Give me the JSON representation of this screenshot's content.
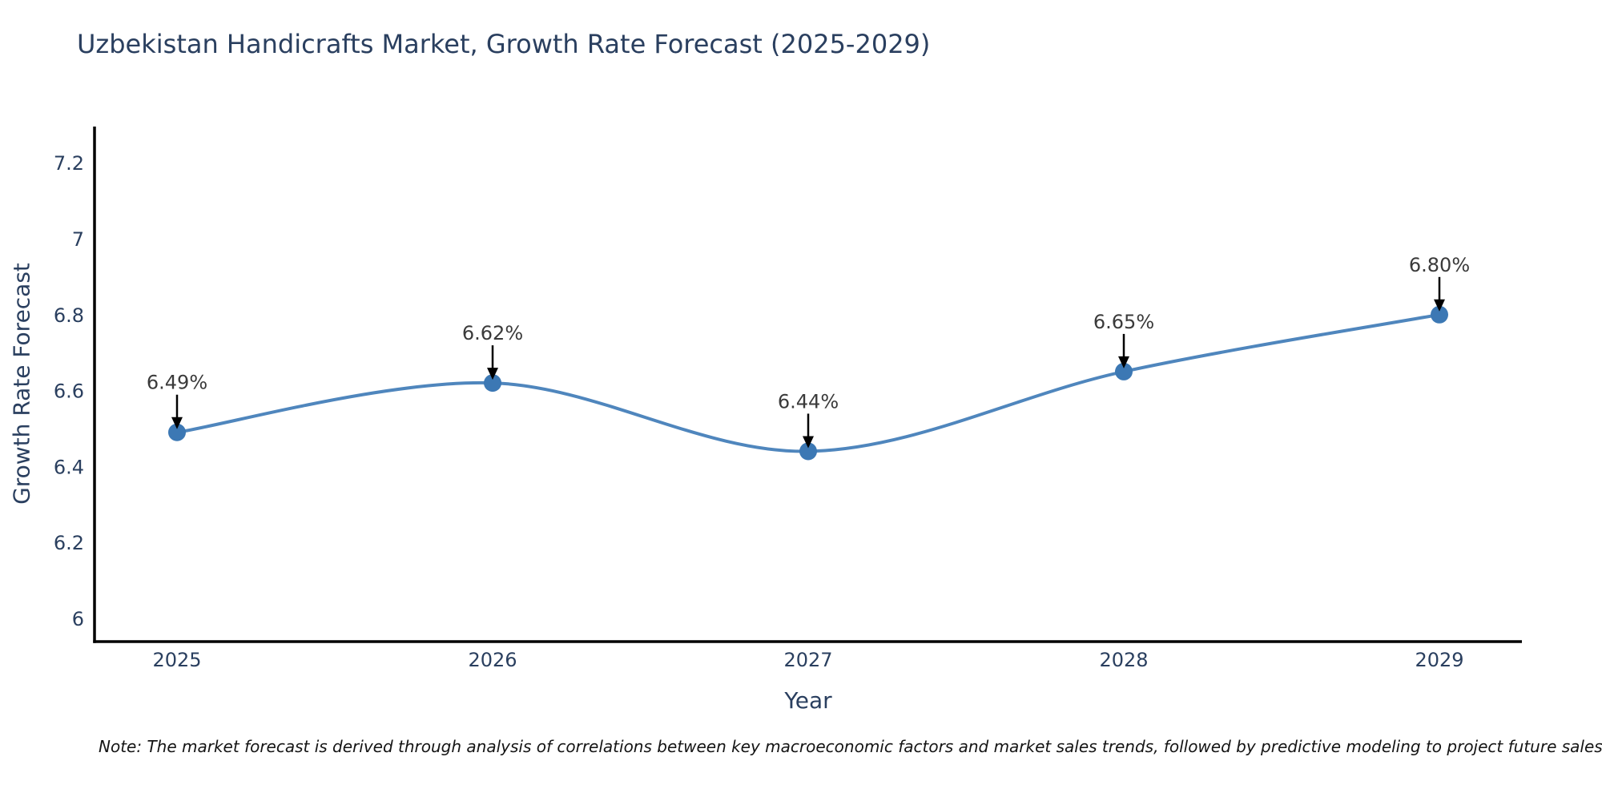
{
  "title": "Uzbekistan Handicrafts Market, Growth Rate Forecast (2025-2029)",
  "note": "Note: The market forecast is derived through analysis of correlations between key macroeconomic factors and market sales trends, followed by predictive modeling to project future sales",
  "chart_data": {
    "type": "line",
    "title": "Uzbekistan Handicrafts Market, Growth Rate Forecast (2025-2029)",
    "xlabel": "Year",
    "ylabel": "Growth Rate Forecast",
    "x": [
      2025,
      2026,
      2027,
      2028,
      2029
    ],
    "x_tick_labels": [
      "2025",
      "2026",
      "2027",
      "2028",
      "2029"
    ],
    "series": [
      {
        "name": "Growth Rate Forecast",
        "values": [
          6.49,
          6.62,
          6.44,
          6.65,
          6.8
        ]
      }
    ],
    "point_labels": [
      "6.49%",
      "6.62%",
      "6.44%",
      "6.65%",
      "6.80%"
    ],
    "y_ticks": [
      6,
      6.2,
      6.4,
      6.6,
      6.8,
      7,
      7.2
    ],
    "y_tick_labels": [
      "6",
      "6.2",
      "6.4",
      "6.6",
      "6.8",
      "7",
      "7.2"
    ],
    "ylim": [
      5.94,
      7.3
    ],
    "grid": false,
    "legend_position": "none",
    "line_shape": "spline",
    "marker": "circle",
    "annotation_arrows": true,
    "colors": {
      "line": "#4f86bd",
      "marker": "#3c78b4",
      "axis": "#000000",
      "tick_text": "#2a3f5f",
      "annotation_text": "#3a3a3a",
      "arrow": "#000000",
      "background": "#ffffff"
    }
  }
}
